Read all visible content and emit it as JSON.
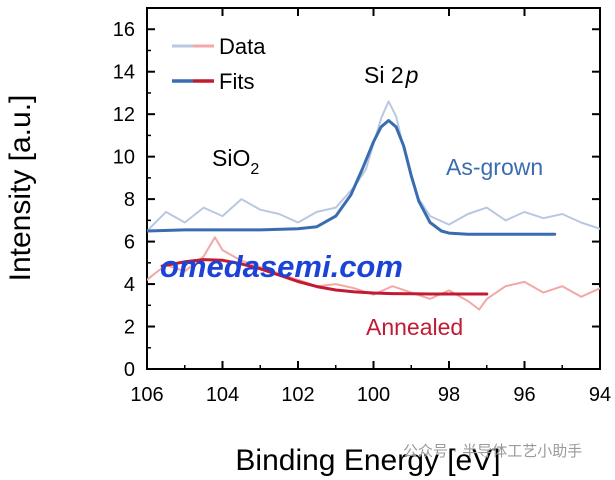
{
  "chart_data": {
    "type": "line",
    "xlabel": "Binding Energy [eV]",
    "ylabel": "Intensity [a.u.]",
    "xlim": [
      106,
      94
    ],
    "ylim": [
      0,
      17
    ],
    "x_reversed": true,
    "xticks": [
      106,
      104,
      102,
      100,
      98,
      96,
      94
    ],
    "yticks": [
      0,
      2,
      4,
      6,
      8,
      10,
      12,
      14,
      16
    ],
    "grid": false,
    "legend": {
      "placement": "top-left",
      "entries": [
        "Data",
        "Fits"
      ]
    },
    "annotations": {
      "peak_label_main": "Si 2",
      "peak_label_italic": "p",
      "oxide_label_main": "SiO",
      "oxide_label_sub": "2"
    },
    "series": [
      {
        "name": "As-grown",
        "kind": "data",
        "color": "#b9c8e2",
        "x": [
          106.0,
          105.5,
          105.0,
          104.5,
          104.0,
          103.5,
          103.0,
          102.5,
          102.0,
          101.5,
          101.0,
          100.5,
          100.2,
          100.0,
          99.8,
          99.6,
          99.4,
          99.2,
          99.0,
          98.8,
          98.5,
          98.0,
          97.5,
          97.0,
          96.5,
          96.0,
          95.5,
          95.0,
          94.5,
          94.0
        ],
        "y": [
          6.5,
          7.4,
          6.9,
          7.6,
          7.2,
          8.0,
          7.5,
          7.3,
          6.9,
          7.4,
          7.6,
          8.6,
          9.4,
          10.6,
          11.8,
          12.6,
          11.9,
          10.4,
          9.0,
          8.0,
          7.2,
          6.8,
          7.3,
          7.6,
          7.0,
          7.4,
          7.1,
          7.3,
          6.9,
          6.6
        ]
      },
      {
        "name": "As-grown",
        "kind": "fit",
        "color": "#3a6db0",
        "x": [
          106.0,
          105.0,
          104.0,
          103.0,
          102.0,
          101.5,
          101.0,
          100.6,
          100.3,
          100.0,
          99.8,
          99.6,
          99.4,
          99.2,
          99.0,
          98.8,
          98.5,
          98.2,
          98.0,
          97.5,
          97.0,
          96.0,
          95.2
        ],
        "y": [
          6.5,
          6.55,
          6.55,
          6.55,
          6.6,
          6.7,
          7.2,
          8.2,
          9.4,
          10.7,
          11.4,
          11.7,
          11.4,
          10.5,
          9.1,
          7.9,
          6.9,
          6.5,
          6.4,
          6.35,
          6.35,
          6.35,
          6.35
        ]
      },
      {
        "name": "Annealed",
        "kind": "data",
        "color": "#f3a7a7",
        "x": [
          106.0,
          105.5,
          105.0,
          104.5,
          104.2,
          104.0,
          103.5,
          103.0,
          102.5,
          102.0,
          101.5,
          101.0,
          100.5,
          100.0,
          99.5,
          99.0,
          98.5,
          98.0,
          97.5,
          97.2,
          97.0,
          96.5,
          96.0,
          95.5,
          95.0,
          94.5,
          94.0
        ],
        "y": [
          4.2,
          4.9,
          4.6,
          5.3,
          6.2,
          5.6,
          5.1,
          4.8,
          4.5,
          4.2,
          3.9,
          4.0,
          3.8,
          3.5,
          3.9,
          3.6,
          3.3,
          3.7,
          3.2,
          2.8,
          3.3,
          3.9,
          4.1,
          3.6,
          3.9,
          3.4,
          3.8
        ]
      },
      {
        "name": "Annealed",
        "kind": "fit",
        "color": "#c21a33",
        "x": [
          105.6,
          105.0,
          104.5,
          104.0,
          103.5,
          103.0,
          102.5,
          102.0,
          101.5,
          101.0,
          100.5,
          100.0,
          99.5,
          99.0,
          98.5,
          98.0,
          97.0
        ],
        "y": [
          4.85,
          5.05,
          5.15,
          5.12,
          4.95,
          4.72,
          4.42,
          4.12,
          3.88,
          3.72,
          3.63,
          3.58,
          3.55,
          3.54,
          3.53,
          3.53,
          3.53
        ]
      }
    ],
    "series_labels": {
      "as_grown": {
        "text": "As-grown",
        "color": "#3a6db0"
      },
      "annealed": {
        "text": "Annealed",
        "color": "#c21a33"
      }
    }
  },
  "watermark": {
    "overlay_text": "omedasemi.com",
    "overlay_color": "#1b44d6",
    "footer_text": "公众号 · 半导体工艺小助手"
  }
}
